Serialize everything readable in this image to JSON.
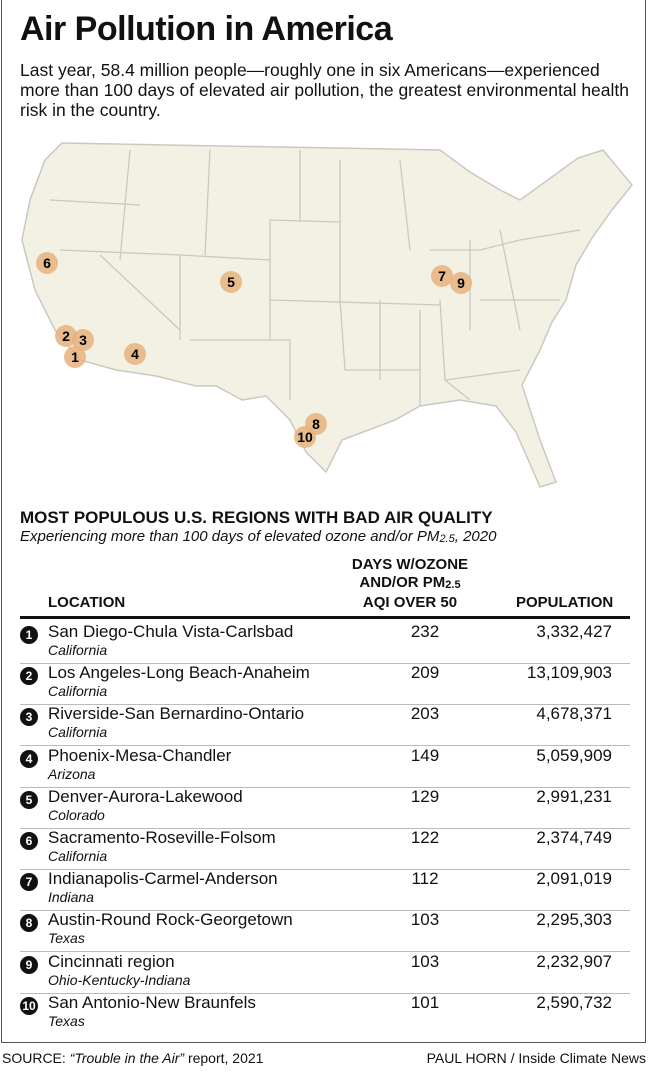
{
  "title": "Air Pollution in America",
  "intro": "Last year, 58.4 million people—roughly one in six Americans—experienced more than 100 days of elevated air pollution, the greatest environmental health risk in the country.",
  "colors": {
    "map_fill": "#f2f1e4",
    "map_border": "#c9c9c4",
    "marker": "#e6b37c"
  },
  "map": {
    "markers": [
      "6",
      "2",
      "3",
      "1",
      "4",
      "5",
      "7",
      "9",
      "8",
      "10"
    ]
  },
  "table": {
    "title": "MOST POPULOUS U.S. REGIONS WITH BAD AIR QUALITY",
    "subtitle_pre": "Experiencing more than 100 days of elevated ozone and/or PM",
    "subtitle_sub": "2.5",
    "subtitle_post": ", 2020",
    "col_location": "LOCATION",
    "col_days_1": "DAYS W/OZONE",
    "col_days_2": "AND/OR PM",
    "col_days_sub": "2.5",
    "col_days_3": "AQI OVER 50",
    "col_population": "POPULATION",
    "rows": [
      {
        "rank": "1",
        "name": "San Diego-Chula Vista-Carlsbad",
        "state": "California",
        "days": "232",
        "population": "3,332,427"
      },
      {
        "rank": "2",
        "name": "Los Angeles-Long Beach-Anaheim",
        "state": "California",
        "days": "209",
        "population": "13,109,903"
      },
      {
        "rank": "3",
        "name": "Riverside-San Bernardino-Ontario",
        "state": "California",
        "days": "203",
        "population": "4,678,371"
      },
      {
        "rank": "4",
        "name": "Phoenix-Mesa-Chandler",
        "state": "Arizona",
        "days": "149",
        "population": "5,059,909"
      },
      {
        "rank": "5",
        "name": "Denver-Aurora-Lakewood",
        "state": "Colorado",
        "days": "129",
        "population": "2,991,231"
      },
      {
        "rank": "6",
        "name": "Sacramento-Roseville-Folsom",
        "state": "California",
        "days": "122",
        "population": "2,374,749"
      },
      {
        "rank": "7",
        "name": "Indianapolis-Carmel-Anderson",
        "state": "Indiana",
        "days": "112",
        "population": "2,091,019"
      },
      {
        "rank": "8",
        "name": "Austin-Round Rock-Georgetown",
        "state": "Texas",
        "days": "103",
        "population": "2,295,303"
      },
      {
        "rank": "9",
        "name": "Cincinnati region",
        "state": "Ohio-Kentucky-Indiana",
        "days": "103",
        "population": "2,232,907"
      },
      {
        "rank": "10",
        "name": "San Antonio-New Braunfels",
        "state": "Texas",
        "days": "101",
        "population": "2,590,732"
      }
    ]
  },
  "source_label": "SOURCE: ",
  "source_title": "“Trouble in the Air”",
  "source_rest": " report, 2021",
  "credit": "PAUL HORN / Inside Climate News"
}
